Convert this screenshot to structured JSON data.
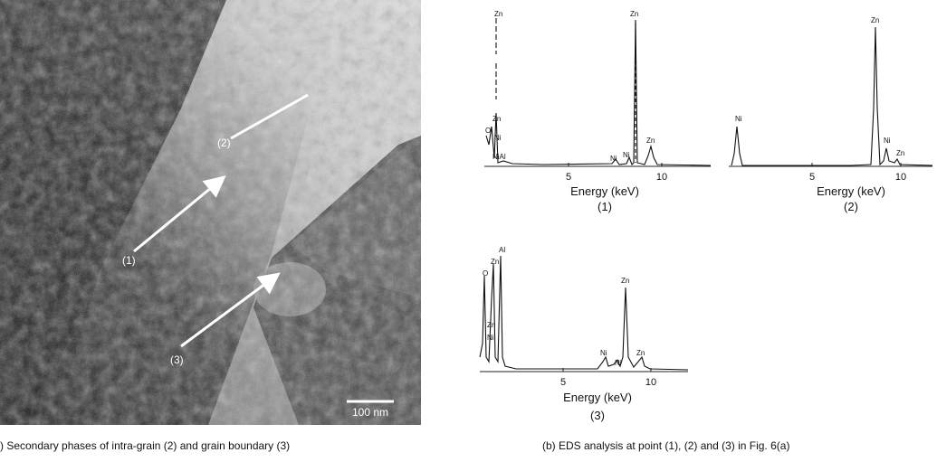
{
  "panel_a": {
    "point_labels": [
      "(1)",
      "(2)",
      "(3)"
    ],
    "scale_bar": "100 nm",
    "caption": ") Secondary phases of intra-grain (2) and grain boundary (3)"
  },
  "panel_b": {
    "caption": "(b) EDS analysis at point (1), (2) and (3) in Fig. 6(a)",
    "spectra": [
      {
        "label": "(1)",
        "x_label": "Energy (keV)",
        "x_ticks": [
          "5",
          "10"
        ],
        "peaks": [
          "Zn",
          "Zn",
          "O",
          "Zn",
          "Ni",
          "NiAl",
          "Ni",
          "Ni",
          "Zn"
        ]
      },
      {
        "label": "(2)",
        "x_label": "Energy (keV)",
        "x_ticks": [
          "5",
          "10"
        ],
        "peaks": [
          "Ni",
          "Zn",
          "Ni",
          "Zn"
        ]
      },
      {
        "label": "(3)",
        "x_label": "Energy (keV)",
        "x_ticks": [
          "5",
          "10"
        ],
        "peaks": [
          "Al",
          "Zn",
          "O",
          "Zn",
          "Ni",
          "Zn",
          "Ni",
          "Ni",
          "Zn"
        ]
      }
    ]
  }
}
